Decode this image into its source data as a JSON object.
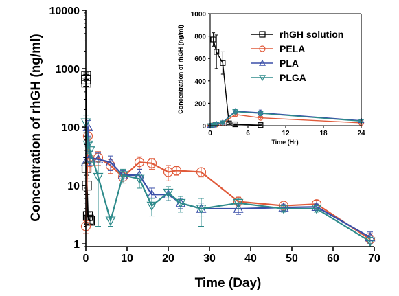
{
  "chart_data": [
    {
      "type": "line",
      "xlabel": "Time (Day)",
      "ylabel": "Concentration of rhGH (ng/ml)",
      "xlim": [
        0,
        70
      ],
      "ylim": [
        0.9,
        10000
      ],
      "yscale": "log",
      "xticks": [
        0,
        10,
        20,
        30,
        40,
        50,
        60,
        70
      ],
      "yticks": [
        {
          "value": 1,
          "label": "1"
        },
        {
          "value": 10,
          "label": "10"
        },
        {
          "value": 100,
          "label": "100"
        },
        {
          "value": 1000,
          "label": "1000"
        },
        {
          "value": 10000,
          "label": "10000"
        }
      ],
      "series": [
        {
          "name": "rhGH solution",
          "color": "#000000",
          "marker": "square",
          "x": [
            0.04,
            0.08,
            0.12,
            0.17,
            0.25,
            0.5,
            0.75,
            1.0
          ],
          "y": [
            650,
            750,
            580,
            20,
            10,
            3.0,
            2.6,
            2.5
          ],
          "err": [
            150,
            100,
            80,
            5,
            3,
            0.5,
            0.4,
            0.4
          ]
        },
        {
          "name": "PELA",
          "color": "#E05A3A",
          "marker": "circle",
          "x": [
            0,
            0.5,
            1,
            3,
            6,
            9,
            13,
            16,
            20,
            22,
            28,
            37,
            48,
            56,
            69
          ],
          "y": [
            2,
            70,
            25,
            30,
            22,
            14,
            25,
            24,
            17,
            18,
            17,
            5.3,
            4.5,
            4.8,
            1.2
          ],
          "err": [
            0.5,
            20,
            8,
            8,
            6,
            3,
            6,
            5,
            5,
            3,
            3,
            1,
            0.5,
            0.8,
            0.3
          ]
        },
        {
          "name": "PLA",
          "color": "#3A4FA8",
          "marker": "triangle-up",
          "x": [
            0,
            0.5,
            1,
            3,
            6,
            9,
            13,
            16,
            20,
            23,
            28,
            37,
            48,
            56,
            69
          ],
          "y": [
            25,
            100,
            30,
            28,
            25,
            15,
            15,
            7,
            7,
            5,
            4,
            4,
            4.2,
            4.3,
            1.3
          ],
          "err": [
            5,
            30,
            8,
            8,
            7,
            3,
            4,
            2,
            1.5,
            1,
            1,
            0.8,
            0.5,
            0.5,
            0.3
          ]
        },
        {
          "name": "PLGA",
          "color": "#2E8B8B",
          "marker": "triangle-down",
          "x": [
            0,
            0.5,
            1,
            3,
            6,
            9,
            13,
            16,
            20,
            23,
            28,
            37,
            48,
            56,
            69
          ],
          "y": [
            120,
            50,
            40,
            14,
            2.5,
            15,
            13,
            4.5,
            7.5,
            5,
            4,
            5,
            4,
            4,
            1.1
          ],
          "err": [
            40,
            15,
            15,
            12,
            0.5,
            4,
            4,
            1.5,
            2,
            1.5,
            2,
            1,
            0.5,
            0.5,
            0.2
          ]
        }
      ]
    },
    {
      "type": "line",
      "xlabel": "Time (Hr)",
      "ylabel": "Concentration of rhGH (ng/ml)",
      "xlim": [
        0,
        24
      ],
      "ylim": [
        0,
        1000
      ],
      "xticks": [
        0,
        6,
        12,
        18,
        24
      ],
      "yticks": [
        0,
        200,
        400,
        600,
        800,
        1000
      ],
      "legend": {
        "position": "top-right",
        "entries": [
          "rhGH solution",
          "PELA",
          "PLA",
          "PLGA"
        ]
      },
      "series": [
        {
          "name": "rhGH solution",
          "color": "#000000",
          "marker": "square",
          "x": [
            0.5,
            1,
            2,
            3,
            4,
            8
          ],
          "y": [
            770,
            660,
            560,
            20,
            12,
            5
          ],
          "err": [
            60,
            150,
            100,
            10,
            5,
            3
          ]
        },
        {
          "name": "PELA",
          "color": "#E05A3A",
          "marker": "circle",
          "x": [
            0,
            0.5,
            1,
            2,
            4,
            8,
            24
          ],
          "y": [
            0,
            5,
            10,
            20,
            100,
            70,
            25
          ],
          "err": [
            0,
            3,
            5,
            8,
            15,
            12,
            8
          ]
        },
        {
          "name": "PLA",
          "color": "#3A4FA8",
          "marker": "triangle-up",
          "x": [
            0,
            0.5,
            1,
            2,
            4,
            8,
            24
          ],
          "y": [
            0,
            5,
            15,
            30,
            130,
            115,
            45
          ],
          "err": [
            0,
            3,
            5,
            10,
            20,
            25,
            10
          ]
        },
        {
          "name": "PLGA",
          "color": "#2E8B8B",
          "marker": "triangle-down",
          "x": [
            0,
            0.5,
            1,
            2,
            4,
            8,
            24
          ],
          "y": [
            0,
            5,
            12,
            25,
            125,
            110,
            40
          ],
          "err": [
            0,
            3,
            5,
            10,
            20,
            20,
            10
          ]
        }
      ]
    }
  ]
}
